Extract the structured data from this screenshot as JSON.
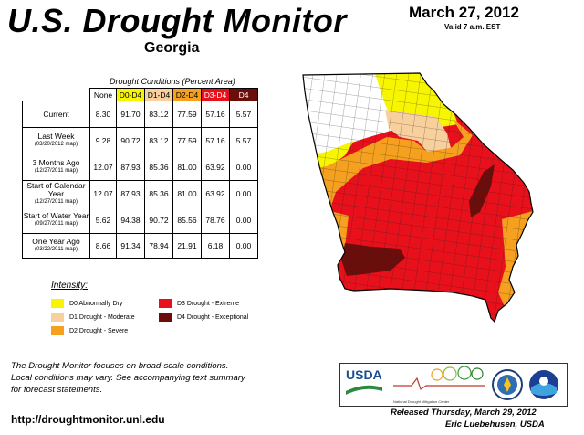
{
  "header": {
    "title": "U.S. Drought Monitor",
    "state": "Georgia",
    "date": "March 27, 2012",
    "valid": "Valid 7 a.m. EST"
  },
  "table": {
    "caption": "Drought Conditions (Percent Area)",
    "columns": [
      "None",
      "D0-D4",
      "D1-D4",
      "D2-D4",
      "D3-D4",
      "D4"
    ],
    "rows": [
      {
        "label": "Current",
        "sub": "",
        "values": [
          "8.30",
          "91.70",
          "83.12",
          "77.59",
          "57.16",
          "5.57"
        ]
      },
      {
        "label": "Last Week",
        "sub": "(03/20/2012 map)",
        "values": [
          "9.28",
          "90.72",
          "83.12",
          "77.59",
          "57.16",
          "5.57"
        ]
      },
      {
        "label": "3 Months Ago",
        "sub": "(12/27/2011 map)",
        "values": [
          "12.07",
          "87.93",
          "85.36",
          "81.00",
          "63.92",
          "0.00"
        ]
      },
      {
        "label": "Start of Calendar Year",
        "sub": "(12/27/2011 map)",
        "values": [
          "12.07",
          "87.93",
          "85.36",
          "81.00",
          "63.92",
          "0.00"
        ]
      },
      {
        "label": "Start of Water Year",
        "sub": "(09/27/2011 map)",
        "values": [
          "5.62",
          "94.38",
          "90.72",
          "85.56",
          "78.76",
          "0.00"
        ]
      },
      {
        "label": "One Year Ago",
        "sub": "(03/22/2011 map)",
        "values": [
          "8.66",
          "91.34",
          "78.94",
          "21.91",
          "6.18",
          "0.00"
        ]
      }
    ]
  },
  "legend": {
    "title": "Intensity:",
    "items": [
      {
        "label": "D0 Abnormally Dry",
        "color": "#f7f500"
      },
      {
        "label": "D1 Drought - Moderate",
        "color": "#f8d09d"
      },
      {
        "label": "D2 Drought - Severe",
        "color": "#f5a01e"
      },
      {
        "label": "D3 Drought - Extreme",
        "color": "#e8101b"
      },
      {
        "label": "D4 Drought - Exceptional",
        "color": "#6b0e0b"
      }
    ]
  },
  "footer": {
    "note_line1": "The Drought Monitor focuses on broad-scale conditions.",
    "note_line2": "Local conditions may vary. See accompanying text summary",
    "note_line3": "for forecast statements.",
    "url": "http://droughtmonitor.unl.edu",
    "released": "Released Thursday, March 29, 2012",
    "author": "Eric Luebehusen, USDA"
  },
  "logos": {
    "usda": "USDA",
    "ndmc": "National Drought Mitigation Center",
    "doc_icon": "department-of-commerce-seal",
    "noaa_icon": "noaa-logo"
  },
  "map": {
    "region": "Georgia",
    "colors": {
      "none": "#ffffff",
      "d0": "#f7f500",
      "d1": "#f8d09d",
      "d2": "#f5a01e",
      "d3": "#e8101b",
      "d4": "#6b0e0b"
    }
  }
}
